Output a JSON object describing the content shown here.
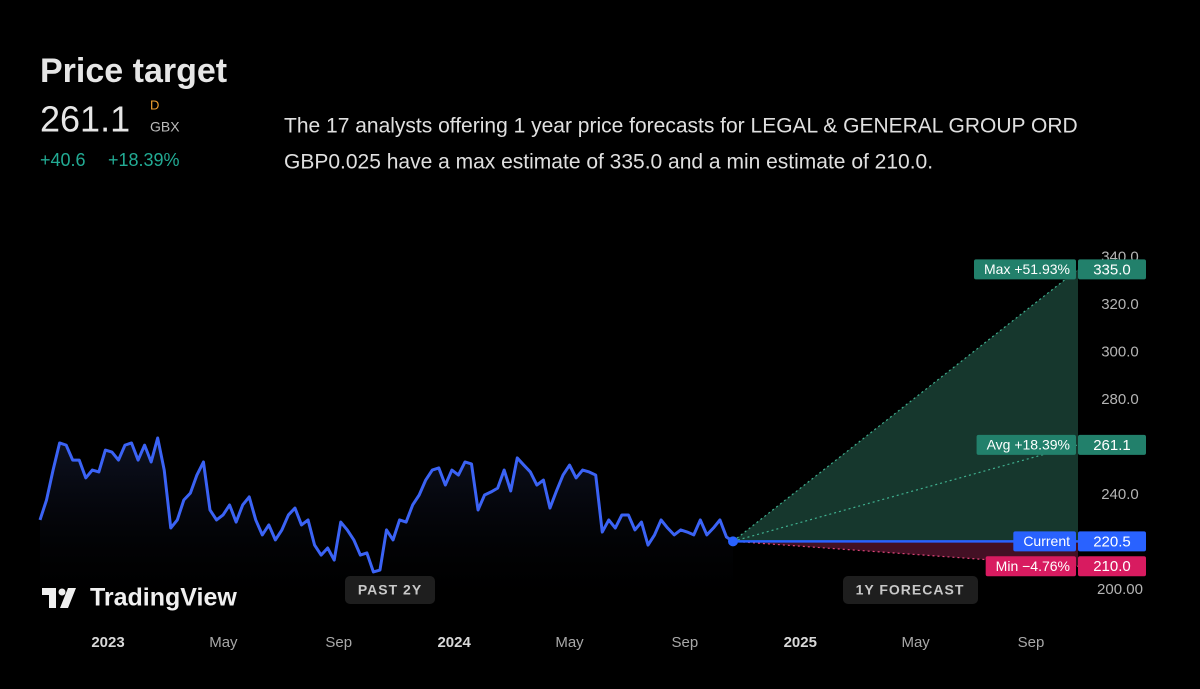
{
  "header": {
    "title": "Price target",
    "price": "261.1",
    "price_flag": "D",
    "currency": "GBX",
    "change": "+40.6",
    "change_pct": "+18.39%",
    "description_lines": [
      "The 17 analysts offering 1 year price forecasts for LEGAL & GENERAL GROUP ORD",
      "GBP0.025 have a max estimate of 335.0 and a min estimate of 210.0."
    ]
  },
  "logo": "TradingView",
  "buttons": [
    "PAST 2Y",
    "1Y FORECAST"
  ],
  "chart_data": {
    "type": "line",
    "series": [
      {
        "color": "#3b63f5",
        "values": [
          229.5,
          237.9,
          250.5,
          261.9,
          261,
          254.7,
          254.7,
          247.2,
          250.5,
          249.7,
          258.9,
          258.1,
          254.7,
          261,
          261.9,
          254.7,
          261,
          253.9,
          264,
          250.5,
          226.1,
          229.5,
          237.9,
          240.8,
          248.4,
          253.9,
          233.7,
          229.5,
          231.6,
          235.8,
          228.6,
          235.8,
          239.2,
          229.5,
          223.2,
          227.4,
          221.1,
          225.3,
          231.6,
          234.5,
          227.4,
          229.5,
          218.9,
          214.7,
          217.7,
          212.6,
          228.6,
          225.3,
          221.1,
          214.7,
          215.6,
          207.6,
          208.4,
          225.3,
          221.1,
          229.5,
          228.6,
          235.8,
          240,
          246.3,
          250.5,
          251.4,
          244.2,
          250.5,
          248.4,
          253.9,
          253.1,
          233.7,
          240,
          241.3,
          242.9,
          250.5,
          241.7,
          255.6,
          252.6,
          249.7,
          244.2,
          246.3,
          234.5,
          241.7,
          248.4,
          252.6,
          247.2,
          250.5,
          249.7,
          248.4,
          224.4,
          229.5,
          226.1,
          231.6,
          231.6,
          225.3,
          228.6,
          218.9,
          223.2,
          229.5,
          226.1,
          223.2,
          225.3,
          224.4,
          223.2,
          229.5,
          223.2,
          226.1,
          229.5,
          222.3,
          220.5
        ]
      }
    ],
    "x_axis_labels": [
      {
        "label": "2023",
        "bold": true
      },
      {
        "label": "May"
      },
      {
        "label": "Sep"
      },
      {
        "label": "2024",
        "bold": true
      },
      {
        "label": "May"
      },
      {
        "label": "Sep"
      },
      {
        "label": "2025",
        "bold": true
      },
      {
        "label": "May"
      },
      {
        "label": "Sep"
      }
    ],
    "ylim": [
      200,
      340
    ],
    "yticks": [
      {
        "value": 200,
        "label": "200.00"
      },
      {
        "value": 240,
        "label": "240.0"
      },
      {
        "value": 280,
        "label": "280.0"
      },
      {
        "value": 300,
        "label": "300.0"
      },
      {
        "value": 320,
        "label": "320.0"
      },
      {
        "value": 340,
        "label": "340.0"
      }
    ],
    "forecast": {
      "max": {
        "label": "Max +51.93%",
        "value": 335,
        "value_label": "335.0",
        "color": "#22806b"
      },
      "avg": {
        "label": "Avg +18.39%",
        "value": 261.1,
        "value_label": "261.1",
        "color": "#22806b"
      },
      "current": {
        "label": "Current",
        "value": 220.5,
        "value_label": "220.5",
        "color": "#2962ff"
      },
      "min": {
        "label": "Min −4.76%",
        "value": 210,
        "value_label": "210.0",
        "color": "#d81b60"
      }
    }
  }
}
